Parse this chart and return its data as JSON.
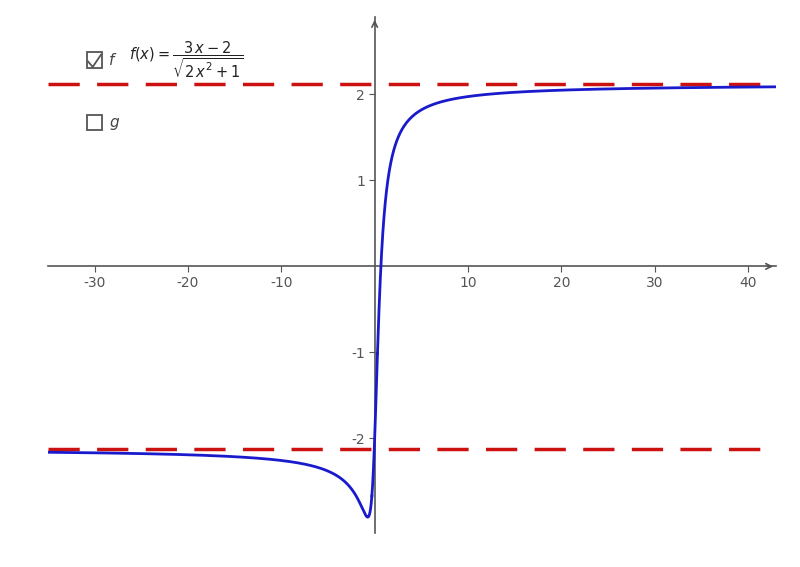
{
  "xlim": [
    -35,
    43
  ],
  "ylim": [
    -3.1,
    2.9
  ],
  "x_ticks": [
    -30,
    -20,
    -10,
    10,
    20,
    30,
    40
  ],
  "y_ticks": [
    -2,
    -1,
    1,
    2
  ],
  "asymptote_y_pos": 2.1213203435596424,
  "asymptote_y_neg": -2.1213203435596424,
  "func_color": "#1a1acd",
  "asymptote_color": "#cc1111",
  "bg_color": "#ffffff",
  "axis_color": "#555555",
  "func_linewidth": 2.0,
  "asymptote_linewidth": 2.5,
  "tick_color": "#555555",
  "tick_fontsize": 10
}
